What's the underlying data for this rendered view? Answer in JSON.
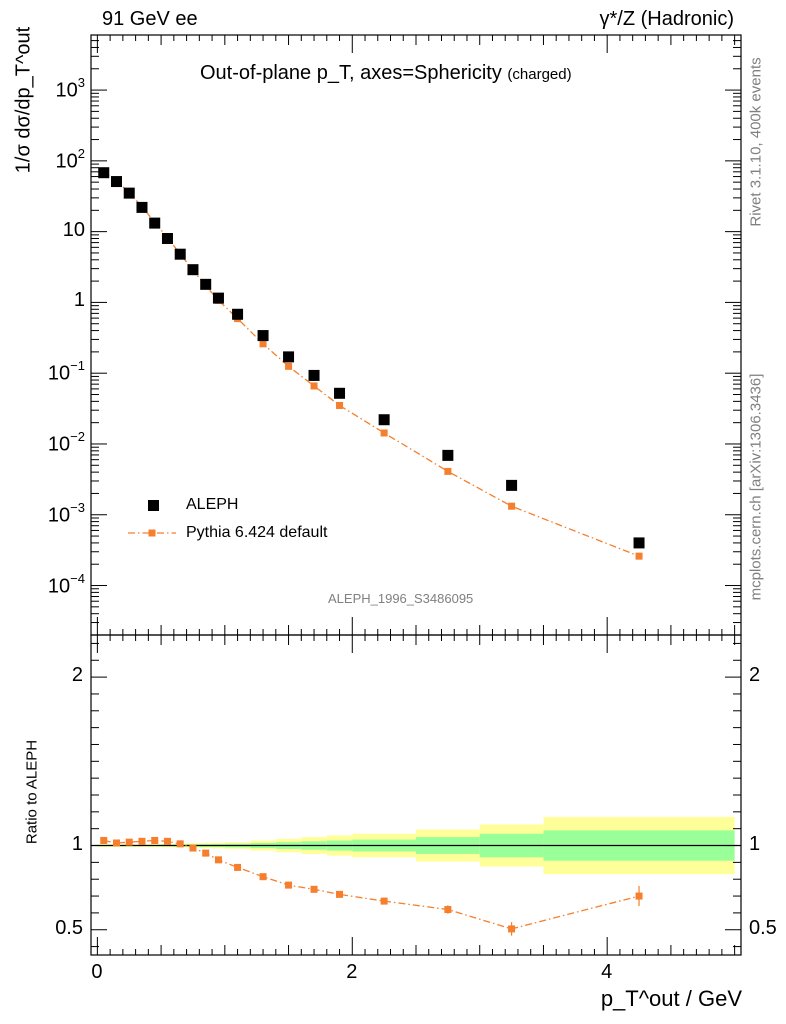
{
  "header": {
    "left": "91 GeV ee",
    "right": "γ*/Z (Hadronic)"
  },
  "side_labels": {
    "rivet": "Rivet 3.1.10,  400k events",
    "mcplots": "mcplots.cern.ch [arXiv:1306.3436]"
  },
  "chart_data": [
    {
      "type": "scatter",
      "title": "Out-of-plane p_T, axes=Sphericity",
      "title_suffix": "(charged)",
      "analysis_label": "ALEPH_1996_S3486095",
      "ylabel": "1/σ dσ/dp_T^out",
      "yscale": "log",
      "ylim": [
        2e-05,
        6000
      ],
      "xlim": [
        -0.05,
        5.05
      ],
      "y_tick_labels": [
        "10^3",
        "10^2",
        "10",
        "1",
        "10^-1",
        "10^-2",
        "10^-3",
        "10^-4"
      ],
      "legend_position": "lower-left",
      "x": [
        0.05,
        0.15,
        0.25,
        0.35,
        0.45,
        0.55,
        0.65,
        0.75,
        0.85,
        0.95,
        1.1,
        1.3,
        1.5,
        1.7,
        1.9,
        2.25,
        2.75,
        3.25,
        4.25
      ],
      "series": [
        {
          "name": "ALEPH",
          "color": "#000000",
          "marker": "square",
          "values": [
            68,
            51,
            35,
            22,
            13.2,
            8.0,
            4.8,
            2.9,
            1.8,
            1.15,
            0.68,
            0.34,
            0.17,
            0.093,
            0.052,
            0.022,
            0.0069,
            0.0026,
            0.0004
          ]
        },
        {
          "name": "Pythia 6.424 default",
          "color": "#f57f2c",
          "marker": "square-line",
          "values": [
            70,
            52,
            35.5,
            22.5,
            13.6,
            8.2,
            4.85,
            2.85,
            1.72,
            1.07,
            0.59,
            0.26,
            0.125,
            0.066,
            0.035,
            0.0143,
            0.0041,
            0.00132,
            0.00026
          ]
        }
      ]
    },
    {
      "type": "line",
      "ylabel": "Ratio to ALEPH",
      "xlabel": "p_T^out / GeV",
      "xlim": [
        -0.05,
        5.05
      ],
      "ylim": [
        0.35,
        2.25
      ],
      "x_ticks": [
        0,
        2,
        4
      ],
      "y_ticks": [
        0.5,
        1,
        2
      ],
      "bins": [
        0,
        0.1,
        0.2,
        0.3,
        0.4,
        0.5,
        0.6,
        0.7,
        0.8,
        0.9,
        1.0,
        1.2,
        1.4,
        1.6,
        1.8,
        2.0,
        2.5,
        3.0,
        3.5,
        5.0
      ],
      "stat_band": [
        0.004,
        0.004,
        0.004,
        0.004,
        0.004,
        0.005,
        0.006,
        0.007,
        0.008,
        0.009,
        0.011,
        0.015,
        0.02,
        0.025,
        0.03,
        0.035,
        0.05,
        0.07,
        0.09,
        0.11
      ],
      "total_band": [
        0.008,
        0.008,
        0.008,
        0.008,
        0.009,
        0.01,
        0.011,
        0.013,
        0.015,
        0.017,
        0.02,
        0.03,
        0.04,
        0.05,
        0.06,
        0.07,
        0.095,
        0.125,
        0.17,
        0.235
      ],
      "x": [
        0.05,
        0.15,
        0.25,
        0.35,
        0.45,
        0.55,
        0.65,
        0.75,
        0.85,
        0.95,
        1.1,
        1.3,
        1.5,
        1.7,
        1.9,
        2.25,
        2.75,
        3.25,
        4.25
      ],
      "series": [
        {
          "name": "Pythia 6.424 default",
          "color": "#f57f2c",
          "values": [
            1.03,
            1.015,
            1.02,
            1.025,
            1.03,
            1.025,
            1.01,
            0.985,
            0.955,
            0.915,
            0.87,
            0.815,
            0.765,
            0.74,
            0.71,
            0.67,
            0.62,
            0.505,
            0.7
          ],
          "errors": [
            0.01,
            0.008,
            0.008,
            0.008,
            0.008,
            0.008,
            0.008,
            0.008,
            0.008,
            0.008,
            0.008,
            0.008,
            0.008,
            0.01,
            0.01,
            0.012,
            0.025,
            0.04,
            0.06
          ]
        }
      ],
      "band_colors": {
        "stat": "#99ff99",
        "total": "#ffff99"
      }
    }
  ]
}
